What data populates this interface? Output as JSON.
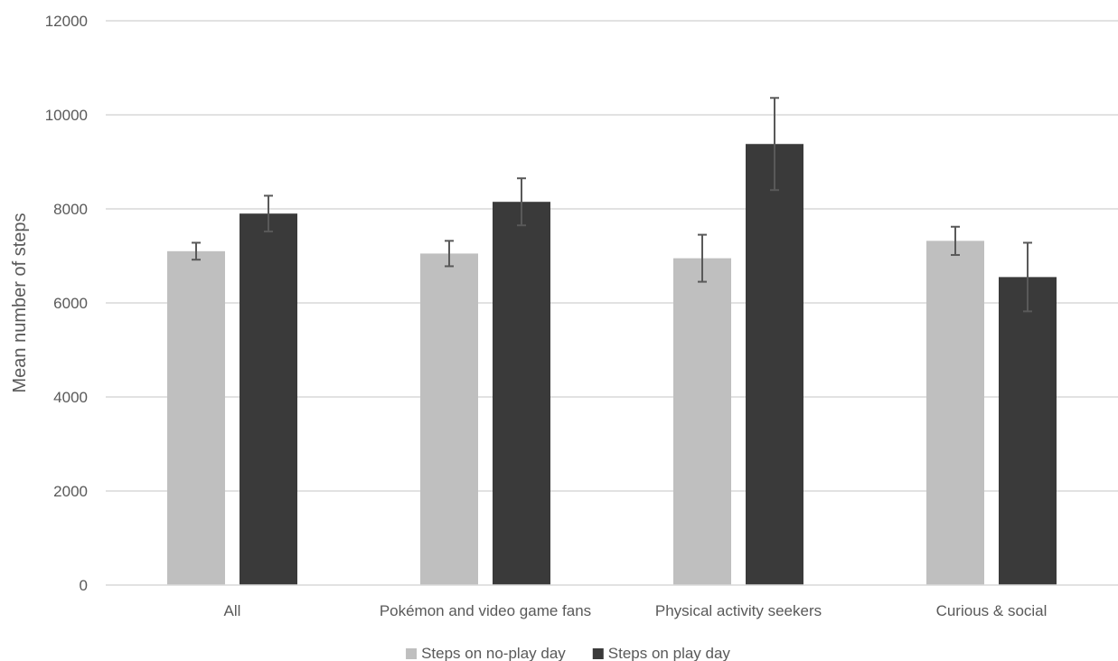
{
  "chart_data": {
    "type": "bar",
    "ylabel": "Mean number of steps",
    "xlabel": "",
    "ylim": [
      0,
      12000
    ],
    "yticks": [
      0,
      2000,
      4000,
      6000,
      8000,
      10000,
      12000
    ],
    "grid": true,
    "legend_position": "bottom",
    "categories": [
      "All",
      "Pokémon and video game fans",
      "Physical activity seekers",
      "Curious & social"
    ],
    "series": [
      {
        "name": "Steps on no-play day",
        "color": "#bfbfbf",
        "values": [
          7100,
          7050,
          6950,
          7320
        ],
        "error": [
          180,
          270,
          500,
          300
        ]
      },
      {
        "name": "Steps on play day",
        "color": "#3a3a3a",
        "values": [
          7900,
          8150,
          9380,
          6550
        ],
        "error": [
          380,
          500,
          980,
          730
        ]
      }
    ]
  }
}
